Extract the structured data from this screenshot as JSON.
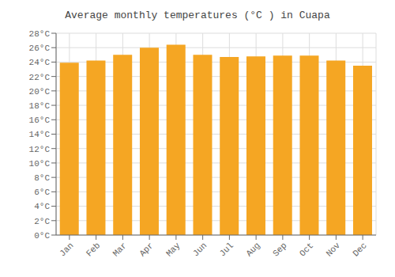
{
  "chart_data": {
    "type": "bar",
    "title": "Average monthly temperatures (°C ) in Cuapa",
    "categories": [
      "Jan",
      "Feb",
      "Mar",
      "Apr",
      "May",
      "Jun",
      "Jul",
      "Aug",
      "Sep",
      "Oct",
      "Nov",
      "Dec"
    ],
    "values": [
      23.9,
      24.2,
      25.0,
      26.0,
      26.4,
      25.0,
      24.7,
      24.8,
      24.9,
      24.9,
      24.2,
      23.5
    ],
    "color": "#F5A623",
    "ylim": [
      0,
      28
    ],
    "yticks": [
      {
        "value": 0,
        "label": "0°C"
      },
      {
        "value": 2,
        "label": "2°C"
      },
      {
        "value": 4,
        "label": "4°C"
      },
      {
        "value": 6,
        "label": "6°C"
      },
      {
        "value": 8,
        "label": "8°C"
      },
      {
        "value": 10,
        "label": "10°C"
      },
      {
        "value": 12,
        "label": "12°C"
      },
      {
        "value": 14,
        "label": "14°C"
      },
      {
        "value": 16,
        "label": "16°C"
      },
      {
        "value": 18,
        "label": "18°C"
      },
      {
        "value": 20,
        "label": "20°C"
      },
      {
        "value": 22,
        "label": "22°C"
      },
      {
        "value": 24,
        "label": "24°C"
      },
      {
        "value": 26,
        "label": "26°C"
      },
      {
        "value": 28,
        "label": "28°C"
      }
    ],
    "grid": true
  }
}
